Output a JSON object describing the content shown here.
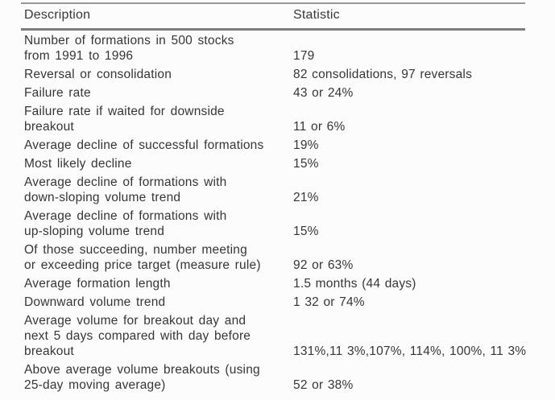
{
  "page": {
    "background_color": "#fcfcfc",
    "text_color": "#363636",
    "top_rule_color": "#979797",
    "header_rule_color": "#7d7d7d"
  },
  "table": {
    "headers": [
      "Description",
      "Statistic"
    ],
    "rows": [
      {
        "description": "Number of formations in 500 stocks\nfrom 1991 to 1996",
        "statistic": "179"
      },
      {
        "description": "Reversal or consolidation",
        "statistic": "82 consolidations, 97 reversals"
      },
      {
        "description": "Failure rate",
        "statistic": "43 or 24%"
      },
      {
        "description": "Failure rate if waited for downside\nbreakout",
        "statistic": "11 or 6%"
      },
      {
        "description": "Average decline of successful formations",
        "statistic": "19%"
      },
      {
        "description": "Most likely decline",
        "statistic": "15%"
      },
      {
        "description": "Average decline of formations with\ndown-sloping volume trend",
        "statistic": "21%"
      },
      {
        "description": "Average decline of formations with\nup-sloping volume trend",
        "statistic": "15%"
      },
      {
        "description": "Of those succeeding, number meeting\nor exceeding price target (measure rule)",
        "statistic": "92 or 63%"
      },
      {
        "description": "Average formation length",
        "statistic": "1.5 months (44 days)"
      },
      {
        "description": "Downward volume trend",
        "statistic": "1 32 or 74%"
      },
      {
        "description": "Average volume for breakout day and\nnext 5 days compared with day before\nbreakout",
        "statistic": "131%,11 3%,107%, 114%, 100%, 11 3%"
      },
      {
        "description": "Above average volume breakouts (using\n25-day moving average)",
        "statistic": "52 or 38%"
      }
    ]
  }
}
